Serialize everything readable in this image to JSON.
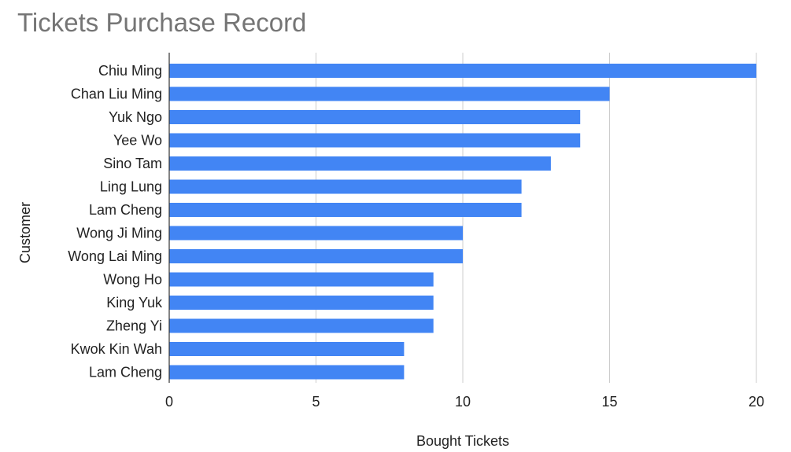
{
  "chart_data": {
    "type": "bar",
    "orientation": "horizontal",
    "title": "Tickets Purchase Record",
    "xlabel": "Bought Tickets",
    "ylabel": "Customer",
    "categories": [
      "Chiu Ming",
      "Chan Liu Ming",
      "Yuk Ngo",
      "Yee Wo",
      "Sino Tam",
      "Ling Lung",
      "Lam Cheng",
      "Wong Ji Ming",
      "Wong Lai Ming",
      "Wong Ho",
      "King Yuk",
      "Zheng Yi",
      "Kwok Kin Wah",
      "Lam Cheng"
    ],
    "values": [
      20,
      15,
      14,
      14,
      13,
      12,
      12,
      10,
      10,
      9,
      9,
      9,
      8,
      8
    ],
    "xlim": [
      0,
      20
    ],
    "xticks": [
      0,
      5,
      10,
      15,
      20
    ],
    "grid": true,
    "bar_color": "#4285f4"
  }
}
